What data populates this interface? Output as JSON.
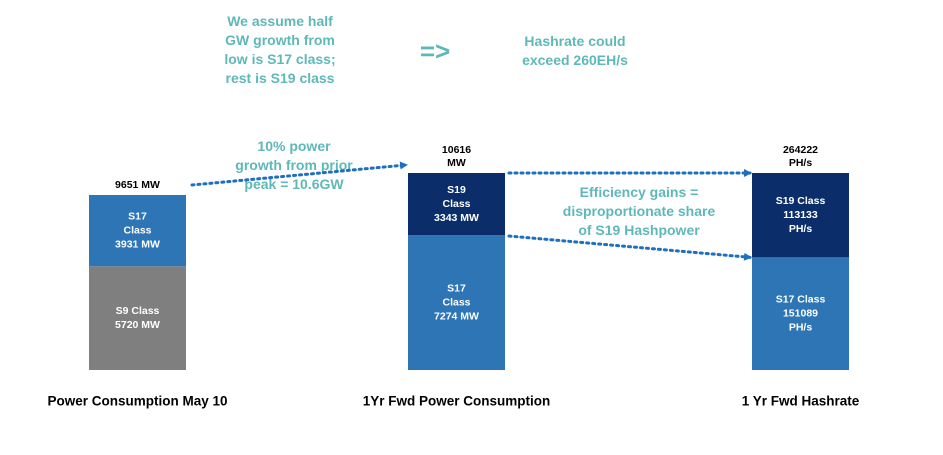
{
  "annotations": {
    "assumption": "We assume half\nGW growth from\nlow is S17 class;\nrest is S19 class",
    "arrow": "=>",
    "hashrate": "Hashrate could\nexceed 260EH/s",
    "growth": "10% power\ngrowth from prior\npeak = 10.6GW",
    "efficiency": "Efficiency gains =\ndisproportionate share\nof S19 Hashpower"
  },
  "colors": {
    "teal_text": "#5fb8b8",
    "s9": "#7f7f7f",
    "s17": "#2e75b6",
    "s19": "#0b2e6b",
    "dotted_arrow": "#1f6fc0"
  },
  "chart_data": {
    "type": "bar",
    "stacked": true,
    "grid": false,
    "bars": [
      {
        "category": "Power Consumption May 10",
        "total": 9651,
        "total_label": [
          "9651 MW"
        ],
        "segments": [
          {
            "name": "S9",
            "value": 5720,
            "color": "#7f7f7f",
            "label": [
              "S9 Class",
              "5720 MW"
            ]
          },
          {
            "name": "S17",
            "value": 3931,
            "color": "#2e75b6",
            "label": [
              "S17",
              "Class",
              "3931 MW"
            ]
          }
        ]
      },
      {
        "category": "1Yr Fwd Power Consumption",
        "total": 10616,
        "total_label": [
          "10616",
          "MW"
        ],
        "segments": [
          {
            "name": "S17",
            "value": 7274,
            "color": "#2e75b6",
            "label": [
              "S17",
              "Class",
              "7274 MW"
            ]
          },
          {
            "name": "S19",
            "value": 3343,
            "color": "#0b2e6b",
            "label": [
              "S19",
              "Class",
              "3343 MW"
            ]
          }
        ]
      },
      {
        "category": "1 Yr Fwd Hashrate",
        "total": 264222,
        "total_label": [
          "264222",
          "PH/s"
        ],
        "segments": [
          {
            "name": "S17",
            "value": 151089,
            "color": "#2e75b6",
            "label": [
              "S17 Class",
              "151089",
              "PH/s"
            ]
          },
          {
            "name": "S19",
            "value": 113133,
            "color": "#0b2e6b",
            "label": [
              "S19 Class",
              "113133",
              "PH/s"
            ]
          }
        ]
      }
    ]
  }
}
